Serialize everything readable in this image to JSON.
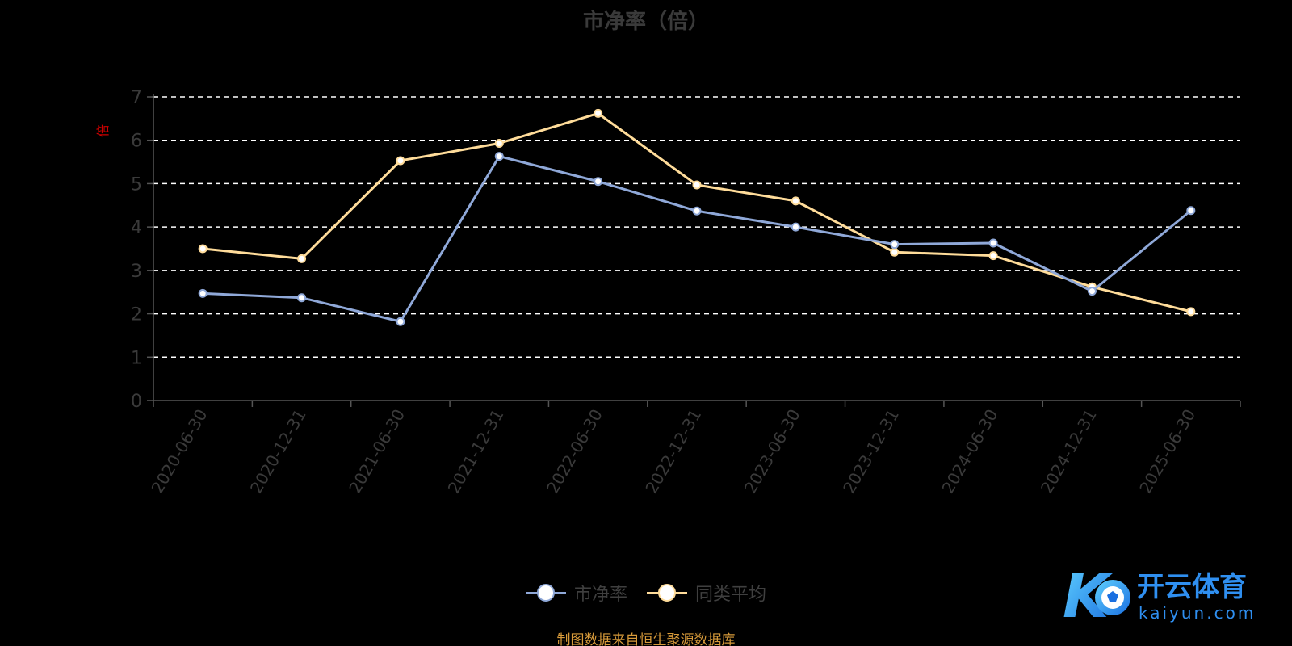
{
  "title": "市净率（倍）",
  "unit_label": "倍",
  "source_text": "制图数据来自恒生聚源数据库",
  "watermark": {
    "brand_cn": "开云体育",
    "brand_url": "kaiyun.com"
  },
  "colors": {
    "series_pb": "#8fa8d8",
    "series_avg": "#ffdc9a",
    "grid": "#ffffff",
    "axis": "#555555",
    "tick": "#3a3a3a",
    "unit": "#cc0000",
    "source": "#d79a3a",
    "brand": "#2f8ff0"
  },
  "legend": [
    {
      "name": "市净率",
      "color": "#8fa8d8"
    },
    {
      "name": "同类平均",
      "color": "#ffdc9a"
    }
  ],
  "chart_data": {
    "type": "line",
    "title": "市净率（倍）",
    "ylabel": "倍",
    "ylim": [
      0,
      7
    ],
    "yticks": [
      0,
      1,
      2,
      3,
      4,
      5,
      6,
      7
    ],
    "grid": true,
    "legend_position": "bottom",
    "x": [
      "2020-06-30",
      "2020-12-31",
      "2021-06-30",
      "2021-12-31",
      "2022-06-30",
      "2022-12-31",
      "2023-06-30",
      "2023-12-31",
      "2024-06-30",
      "2024-12-31",
      "2025-06-30"
    ],
    "series": [
      {
        "name": "市净率",
        "values": [
          2.47,
          2.37,
          1.82,
          5.63,
          5.05,
          4.37,
          4.0,
          3.6,
          3.63,
          2.52,
          4.38
        ]
      },
      {
        "name": "同类平均",
        "values": [
          3.5,
          3.27,
          5.53,
          5.93,
          6.62,
          4.97,
          4.6,
          3.42,
          3.34,
          2.62,
          2.05
        ]
      }
    ]
  }
}
